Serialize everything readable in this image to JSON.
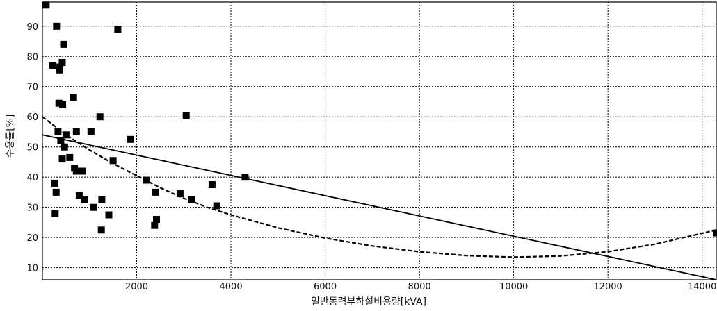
{
  "chart_data": {
    "type": "scatter",
    "xlabel": "일반동력부하설비용량[kVA]",
    "ylabel": "수용률[%]",
    "xlim": [
      0,
      14300
    ],
    "ylim": [
      6,
      98
    ],
    "x_ticks": [
      2000,
      4000,
      6000,
      8000,
      10000,
      12000,
      14000
    ],
    "y_ticks": [
      10,
      20,
      30,
      40,
      50,
      60,
      70,
      80,
      90
    ],
    "grid": true,
    "legend": "none",
    "series": [
      {
        "kind": "points",
        "color": "#000000",
        "points": [
          [
            80,
            97
          ],
          [
            220,
            77
          ],
          [
            260,
            38
          ],
          [
            290,
            35
          ],
          [
            330,
            55
          ],
          [
            350,
            64.5
          ],
          [
            360,
            75.5
          ],
          [
            370,
            76.5
          ],
          [
            270,
            28
          ],
          [
            300,
            90
          ],
          [
            390,
            52
          ],
          [
            420,
            46
          ],
          [
            420,
            78
          ],
          [
            430,
            64
          ],
          [
            450,
            84
          ],
          [
            470,
            50
          ],
          [
            500,
            54
          ],
          [
            580,
            46.5
          ],
          [
            660,
            66.5
          ],
          [
            680,
            43
          ],
          [
            720,
            55
          ],
          [
            720,
            42
          ],
          [
            780,
            34
          ],
          [
            820,
            42
          ],
          [
            850,
            42
          ],
          [
            900,
            32.5
          ],
          [
            1030,
            55
          ],
          [
            1080,
            30
          ],
          [
            1220,
            60
          ],
          [
            1250,
            22.5
          ],
          [
            1260,
            32.5
          ],
          [
            1410,
            27.5
          ],
          [
            1500,
            45.5
          ],
          [
            1600,
            89
          ],
          [
            1860,
            52.5
          ],
          [
            2200,
            39
          ],
          [
            2380,
            24
          ],
          [
            2400,
            35
          ],
          [
            2420,
            26
          ],
          [
            2920,
            34.5
          ],
          [
            3050,
            60.5
          ],
          [
            3160,
            32.5
          ],
          [
            3600,
            37.5
          ],
          [
            3700,
            30.5
          ],
          [
            4300,
            40
          ],
          [
            14300,
            21.5
          ]
        ]
      },
      {
        "kind": "line",
        "style": "solid",
        "color": "#000000",
        "points": [
          [
            0,
            54
          ],
          [
            14300,
            6
          ]
        ]
      },
      {
        "kind": "line",
        "style": "dashed",
        "color": "#000000",
        "points": [
          [
            0,
            60
          ],
          [
            500,
            54
          ],
          [
            1000,
            49
          ],
          [
            1500,
            44.5
          ],
          [
            2000,
            40.5
          ],
          [
            2500,
            36.5
          ],
          [
            3000,
            33
          ],
          [
            3500,
            30
          ],
          [
            4000,
            27.5
          ],
          [
            5000,
            23.2
          ],
          [
            6000,
            19.8
          ],
          [
            7000,
            17.2
          ],
          [
            8000,
            15.3
          ],
          [
            9000,
            14
          ],
          [
            10000,
            13.5
          ],
          [
            11000,
            13.9
          ],
          [
            12000,
            15.3
          ],
          [
            13000,
            17.8
          ],
          [
            14300,
            22.5
          ]
        ]
      }
    ]
  }
}
